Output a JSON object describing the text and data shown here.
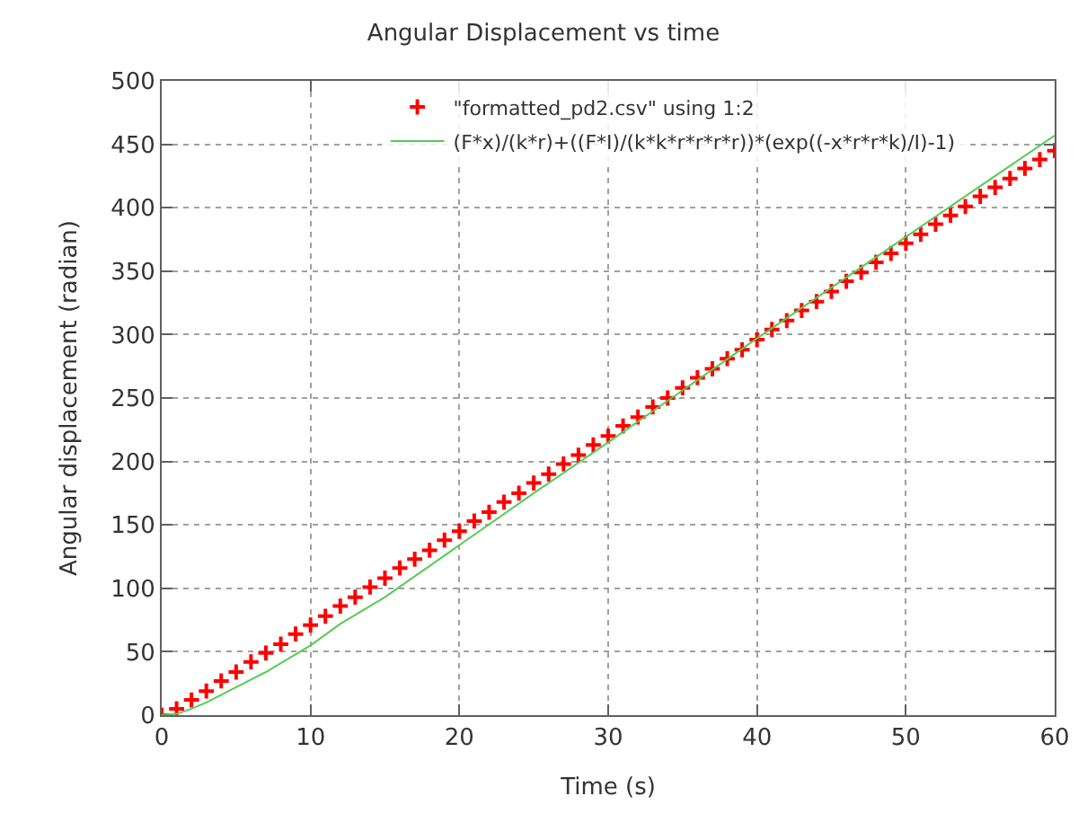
{
  "chart_data": {
    "type": "scatter",
    "title": "Angular Displacement vs time",
    "xlabel": "Time (s)",
    "ylabel": "Angular displacement (radian)",
    "xlim": [
      0,
      60
    ],
    "ylim": [
      0,
      500
    ],
    "xticks": [
      0,
      10,
      20,
      30,
      40,
      50,
      60
    ],
    "yticks": [
      0,
      50,
      100,
      150,
      200,
      250,
      300,
      350,
      400,
      450,
      500
    ],
    "grid": true,
    "legend": "top right",
    "series": [
      {
        "name": "\"formatted_pd2.csv\" using 1:2",
        "color": "#ff0000",
        "marker": "cross",
        "x": [
          0,
          1,
          2,
          3,
          4,
          5,
          6,
          7,
          8,
          9,
          10,
          11,
          12,
          13,
          14,
          15,
          16,
          17,
          18,
          19,
          20,
          21,
          22,
          23,
          24,
          25,
          26,
          27,
          28,
          29,
          30,
          31,
          32,
          33,
          34,
          35,
          36,
          37,
          38,
          39,
          40,
          41,
          42,
          43,
          44,
          45,
          46,
          47,
          48,
          49,
          50,
          51,
          52,
          53,
          54,
          55,
          56,
          57,
          58,
          59,
          60
        ],
        "values": [
          0,
          5,
          12,
          19,
          27,
          34,
          42,
          49,
          56,
          64,
          71,
          78,
          86,
          93,
          101,
          108,
          116,
          123,
          130,
          138,
          145,
          153,
          160,
          168,
          175,
          183,
          190,
          198,
          205,
          213,
          220,
          228,
          235,
          243,
          250,
          258,
          266,
          273,
          281,
          288,
          296,
          304,
          311,
          319,
          326,
          334,
          342,
          349,
          357,
          364,
          372,
          379,
          387,
          394,
          401,
          409,
          416,
          423,
          431,
          438,
          445
        ]
      },
      {
        "name": "(F*x)/(k*r)+((F*I)/(k*k*r*r*r*r))*(exp((-x*r*r*k)/I)-1)",
        "color": "#55cc55",
        "type": "line",
        "line_style": "solid",
        "x": [
          0,
          1,
          2,
          3,
          4,
          5,
          6,
          7,
          8,
          10,
          12,
          15,
          20,
          25,
          30,
          35,
          40,
          45,
          50,
          55,
          60
        ],
        "values": [
          0,
          1,
          5,
          10,
          16,
          22,
          28,
          34,
          41,
          55,
          72,
          93,
          134,
          175,
          215,
          256,
          297,
          337,
          377,
          417,
          457
        ]
      }
    ]
  }
}
